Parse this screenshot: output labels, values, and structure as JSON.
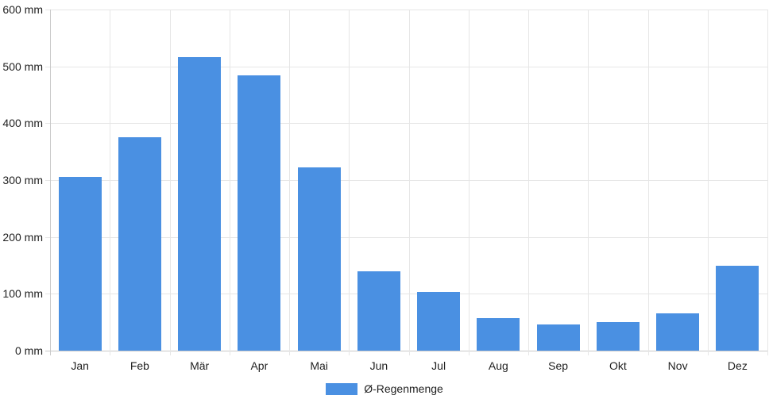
{
  "chart_data": {
    "type": "bar",
    "title": "",
    "categories": [
      "Jan",
      "Feb",
      "Mär",
      "Apr",
      "Mai",
      "Jun",
      "Jul",
      "Aug",
      "Sep",
      "Okt",
      "Nov",
      "Dez"
    ],
    "series": [
      {
        "name": "Ø-Regenmenge",
        "values": [
          305,
          376,
          516,
          484,
          322,
          140,
          103,
          57,
          46,
          50,
          65,
          150
        ]
      }
    ],
    "xlabel": "",
    "ylabel": "",
    "ylim": [
      0,
      600
    ],
    "ytick_step": 100,
    "ytick_suffix": " mm",
    "grid": true,
    "legend_position": "bottom",
    "bar_color": "#4a90e2"
  },
  "y_axis": {
    "tick_labels": [
      "600 mm",
      "500 mm",
      "400 mm",
      "300 mm",
      "200 mm",
      "100 mm",
      "0 mm"
    ]
  },
  "legend": {
    "label": "Ø-Regenmenge"
  },
  "colors": {
    "bar": "#4a90e2",
    "gridline": "#e6e6e6",
    "axis_line": "#c9c9c9",
    "text": "#1f1f1f"
  }
}
